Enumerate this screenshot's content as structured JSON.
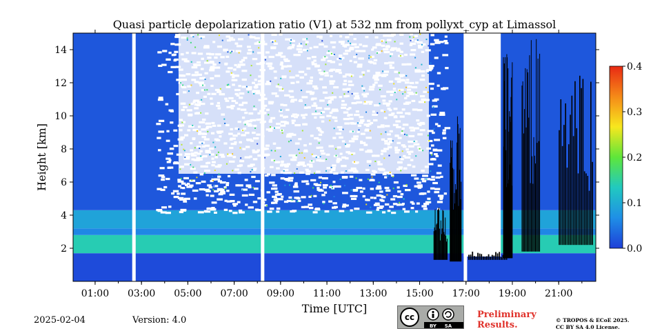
{
  "chart_data": {
    "type": "heatmap",
    "title": "Quasi particle depolarization ratio (V1) at 532 nm from pollyxt_cyp at Limassol",
    "xlabel": "Time [UTC]",
    "ylabel": "Height [km]",
    "x_ticks": [
      "01:00",
      "03:00",
      "05:00",
      "07:00",
      "09:00",
      "11:00",
      "13:00",
      "15:00",
      "17:00",
      "19:00",
      "21:00"
    ],
    "x_tick_hours": [
      1,
      3,
      5,
      7,
      9,
      11,
      13,
      15,
      17,
      19,
      21
    ],
    "xlim_hours": [
      0.05,
      22.6
    ],
    "y_ticks": [
      2,
      4,
      6,
      8,
      10,
      12,
      14
    ],
    "ylim": [
      0,
      15
    ],
    "colorbar": {
      "min": 0.0,
      "max": 0.4,
      "tick_labels": [
        "0.0",
        "0.1",
        "0.2",
        "0.3",
        "0.4"
      ],
      "tick_values": [
        0.0,
        0.1,
        0.2,
        0.3,
        0.4
      ],
      "colormap": [
        "#1e3fd8",
        "#1f8fe6",
        "#21c9c0",
        "#5ee63a",
        "#f7e71e",
        "#f58a18",
        "#e82a14"
      ]
    },
    "gaps_hours": [
      [
        2.6,
        2.75
      ],
      [
        8.15,
        8.3
      ],
      [
        16.9,
        17.05
      ]
    ],
    "layers": [
      {
        "from_km": 0,
        "to_km": 1.7,
        "value": 0.01
      },
      {
        "from_km": 1.7,
        "to_km": 2.8,
        "value": 0.14
      },
      {
        "from_km": 2.8,
        "to_km": 3.2,
        "value": 0.06
      },
      {
        "from_km": 3.2,
        "to_km": 4.3,
        "value": 0.09
      },
      {
        "from_km": 4.3,
        "to_km": 15,
        "value": 0.02
      }
    ]
  },
  "footer": {
    "date": "2025-02-04",
    "version": "Version: 4.0",
    "license_badge": {
      "by": "BY",
      "sa": "SA",
      "cc": "cc"
    },
    "preliminary": [
      "Preliminary",
      "Results."
    ],
    "copyright": [
      "© TROPOS & ECoE 2025.",
      "CC BY SA 4.0 License."
    ]
  }
}
